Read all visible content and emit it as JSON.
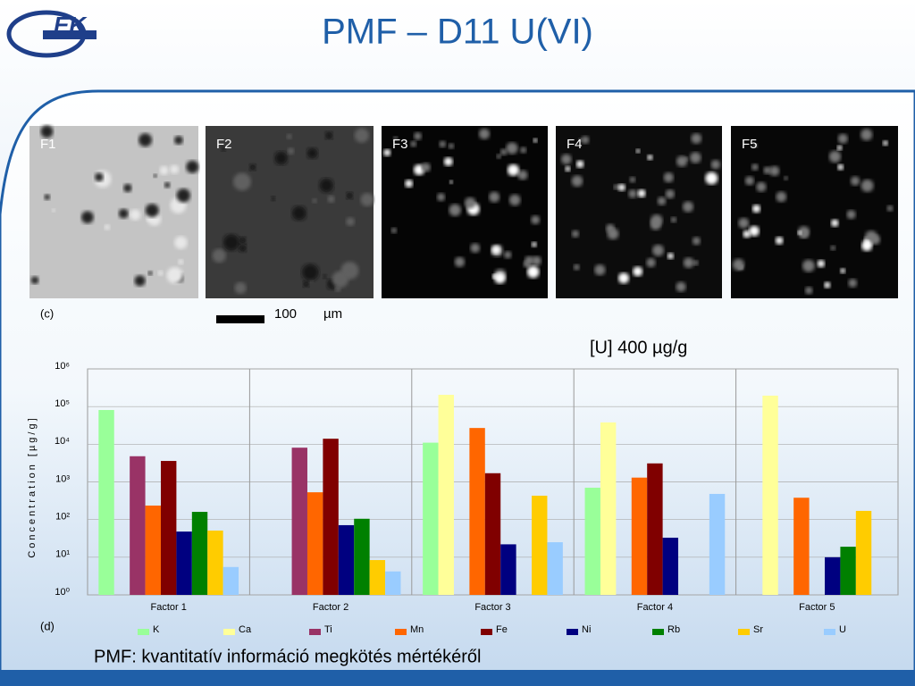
{
  "header": {
    "title": "PMF – D11 U(VI)",
    "logo": "EK"
  },
  "panels": {
    "labels": [
      "F1",
      "F2",
      "F3",
      "F4",
      "F5"
    ],
    "caption": "(c)",
    "scale_value": "100",
    "scale_unit": "µm"
  },
  "note": "[U] 400 µg/g",
  "chart_caption": "(d)",
  "footer": "PMF: kvantitatív információ megkötés mértékéről",
  "chart_data": {
    "type": "bar",
    "ylabel": "Concentration [µg/g]",
    "categories": [
      "Factor 1",
      "Factor 2",
      "Factor 3",
      "Factor 4",
      "Factor 5"
    ],
    "ylog": true,
    "ylim": [
      1,
      1000000
    ],
    "yticks": [
      {
        "value": 1,
        "label": "10⁰"
      },
      {
        "value": 10,
        "label": "10¹"
      },
      {
        "value": 100,
        "label": "10²"
      },
      {
        "value": 1000,
        "label": "10³"
      },
      {
        "value": 10000,
        "label": "10⁴"
      },
      {
        "value": 100000,
        "label": "10⁵"
      },
      {
        "value": 1000000,
        "label": "10⁶"
      }
    ],
    "grid": true,
    "legend": "bottom",
    "series": [
      {
        "name": "K",
        "color": "#99ff99",
        "values": [
          81000,
          null,
          11000,
          700,
          null
        ]
      },
      {
        "name": "Ca",
        "color": "#ffff99",
        "values": [
          null,
          null,
          205000,
          38000,
          195000
        ]
      },
      {
        "name": "Ti",
        "color": "#993366",
        "values": [
          4800,
          8100,
          null,
          null,
          null
        ]
      },
      {
        "name": "Mn",
        "color": "#ff6600",
        "values": [
          235,
          530,
          27000,
          1300,
          380
        ]
      },
      {
        "name": "Fe",
        "color": "#800000",
        "values": [
          3600,
          14000,
          1700,
          3100,
          null
        ]
      },
      {
        "name": "Ni",
        "color": "#000080",
        "values": [
          48,
          71,
          22,
          33,
          10
        ]
      },
      {
        "name": "Rb",
        "color": "#008000",
        "values": [
          160,
          105,
          null,
          null,
          19
        ]
      },
      {
        "name": "Sr",
        "color": "#ffcc00",
        "values": [
          51,
          8.4,
          430,
          null,
          170
        ]
      },
      {
        "name": "U",
        "color": "#99ccff",
        "values": [
          5.5,
          4.2,
          25,
          480,
          null
        ]
      }
    ]
  }
}
